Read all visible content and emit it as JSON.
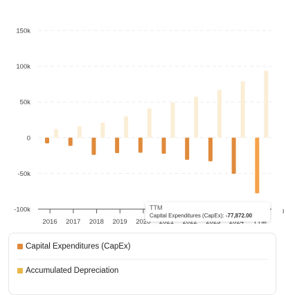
{
  "chart_data": {
    "type": "bar",
    "categories": [
      "2016",
      "2017",
      "2018",
      "2019",
      "2020",
      "2021",
      "2022",
      "2023",
      "2024",
      "TTM"
    ],
    "series": [
      {
        "name": "Capital Expenditures (CapEx)",
        "color": "#e08a3c",
        "values": [
          -8000,
          -11500,
          -24000,
          -21500,
          -21000,
          -22500,
          -31000,
          -33000,
          -50500,
          -77872
        ]
      },
      {
        "name": "Accumulated Depreciation",
        "color": "#fbeed6",
        "values": [
          12000,
          16000,
          21000,
          30000,
          41000,
          49000,
          57500,
          67000,
          79000,
          93500
        ]
      }
    ],
    "highlight_color": "#f4a24a",
    "ylim": [
      -100000,
      150000
    ],
    "yticks": [
      {
        "value": 150000,
        "label": "150k"
      },
      {
        "value": 100000,
        "label": "100k"
      },
      {
        "value": 50000,
        "label": "50k"
      },
      {
        "value": 0,
        "label": "0"
      },
      {
        "value": -50000,
        "label": "-50k"
      },
      {
        "value": -100000,
        "label": "-100k"
      }
    ],
    "grid": true
  },
  "tooltip": {
    "title": "TTM",
    "label": "Capital Expenditures (CapEx):",
    "value": "-77,872.00"
  },
  "legend": {
    "items": [
      {
        "label": "Capital Expenditures (CapEx)",
        "color": "#e08a3c"
      },
      {
        "label": "Accumulated Depreciation",
        "color": "#e8b84a"
      }
    ]
  }
}
